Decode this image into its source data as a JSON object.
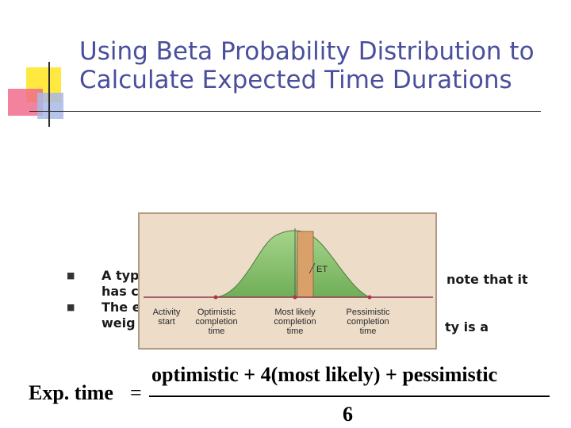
{
  "title": {
    "line1": "Using Beta Probability Distribution to",
    "line2": "Calculate Expected Time Durations"
  },
  "bullets": [
    {
      "line1": "A typ",
      "line1_right": "note that it",
      "line2": "has c"
    },
    {
      "line1": "The e",
      "line1_right": "ty is a",
      "line2": "weig"
    }
  ],
  "chart": {
    "et_label": "ET",
    "axis_labels": {
      "activity_start": [
        "Activity",
        "start"
      ],
      "optimistic": [
        "Optimistic",
        "completion",
        "time"
      ],
      "most_likely": [
        "Most likely",
        "completion",
        "time"
      ],
      "pessimistic": [
        "Pessimistic",
        "completion",
        "time"
      ]
    },
    "colors": {
      "background": "#ecdcc8",
      "curve_fill": "#8dc270",
      "et_band": "#d9a06a",
      "axis": "#8a3a4a",
      "point": "#b0344a"
    }
  },
  "formula": {
    "lhs": "Exp. time",
    "eq": "=",
    "numerator": "optimistic + 4(most likely) + pessimistic",
    "denominator": "6"
  }
}
